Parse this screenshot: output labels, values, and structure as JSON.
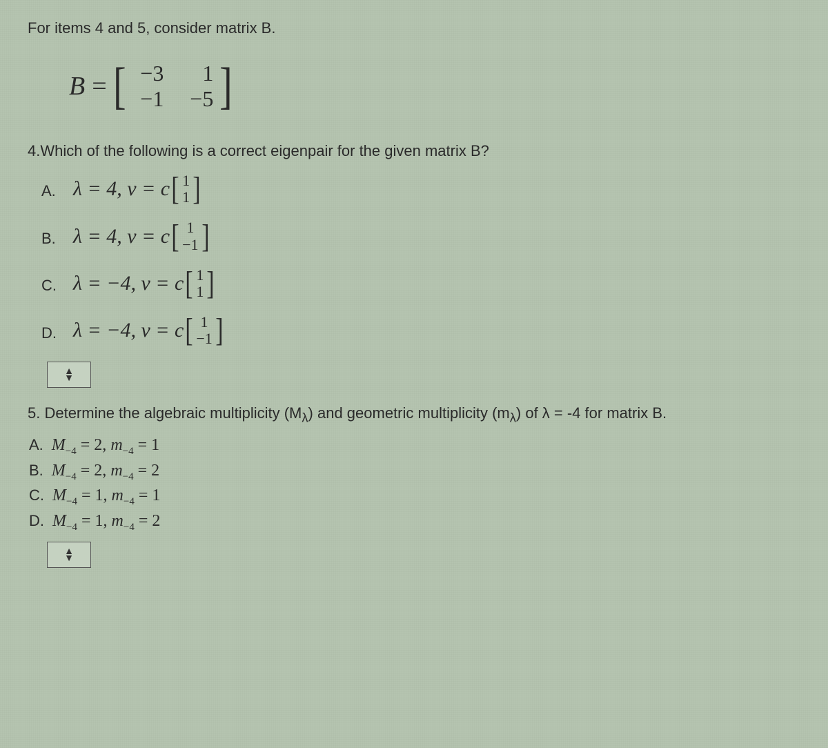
{
  "background_color": "#b5c4b0",
  "text_color": "#2a2a2a",
  "intro": "For items 4 and 5, consider matrix B.",
  "matrix": {
    "lhs": "B",
    "eq": "=",
    "rows": [
      [
        "−3",
        "1"
      ],
      [
        "−1",
        "−5"
      ]
    ]
  },
  "q4": {
    "text": "4.Which of the following is a correct eigenpair for the given matrix B?",
    "options": [
      {
        "letter": "A.",
        "lambda": "λ = 4,",
        "v": "v = c",
        "vec": [
          "1",
          "1"
        ]
      },
      {
        "letter": "B.",
        "lambda": "λ = 4,",
        "v": "v = c",
        "vec": [
          "1",
          "−1"
        ]
      },
      {
        "letter": "C.",
        "lambda": "λ = −4,",
        "v": "v = c",
        "vec": [
          "1",
          "1"
        ]
      },
      {
        "letter": "D.",
        "lambda": "λ = −4,",
        "v": "v = c",
        "vec": [
          "1",
          "−1"
        ]
      }
    ]
  },
  "dropdown_glyph": "▲\n▼",
  "q5": {
    "text_pre": "5. Determine the algebraic multiplicity (M",
    "text_sub1": "λ",
    "text_mid": ") and geometric multiplicity (m",
    "text_sub2": "λ",
    "text_post": ") of λ = -4 for matrix B.",
    "options": [
      {
        "letter": "A.",
        "M_sym": "M",
        "M_sub": "−4",
        "M_val": "= 2,",
        "m_sym": "m",
        "m_sub": "−4",
        "m_val": "= 1"
      },
      {
        "letter": "B.",
        "M_sym": "M",
        "M_sub": "−4",
        "M_val": "= 2,",
        "m_sym": "m",
        "m_sub": "−4",
        "m_val": "= 2"
      },
      {
        "letter": "C.",
        "M_sym": "M",
        "M_sub": "−4",
        "M_val": "= 1,",
        "m_sym": "m",
        "m_sub": "−4",
        "m_val": "= 1"
      },
      {
        "letter": "D.",
        "M_sym": "M",
        "M_sub": "−4",
        "M_val": "= 1,",
        "m_sym": "m",
        "m_sub": "−4",
        "m_val": "= 2"
      }
    ]
  }
}
